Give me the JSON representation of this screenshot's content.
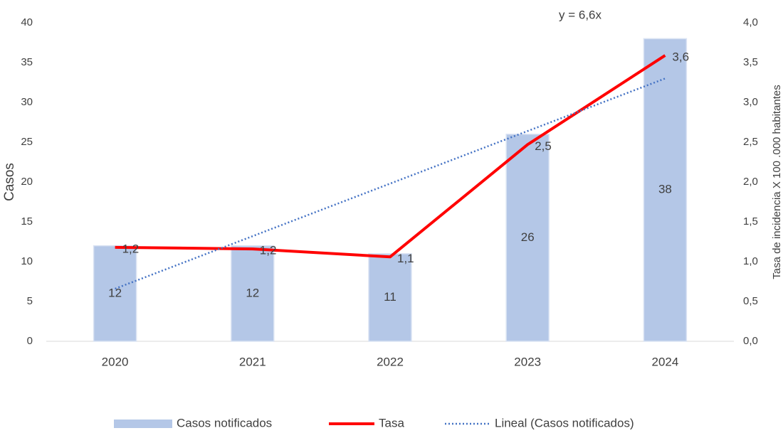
{
  "chart_data": {
    "type": "bar",
    "annotation": "y = 6,6x",
    "ylabel": "Casos",
    "y2label": "Tasa de incidencia X 100 .000 habitantes",
    "categories": [
      "2020",
      "2021",
      "2022",
      "2023",
      "2024"
    ],
    "series": [
      {
        "name": "Casos notificados",
        "type": "bar",
        "color": "#b4c7e7",
        "values": [
          12,
          12,
          11,
          26,
          38
        ]
      },
      {
        "name": "Tasa",
        "type": "line",
        "axis": "y2",
        "color": "#ff0000",
        "values": [
          1.18,
          1.16,
          1.06,
          2.47,
          3.59
        ],
        "value_labels": [
          "1,2",
          "1,2",
          "1,1",
          "2,5",
          "3,6"
        ]
      },
      {
        "name": "Lineal (Casos notificados)",
        "type": "line",
        "style": "dotted",
        "color": "#4472c4",
        "values": [
          6.6,
          13.2,
          19.8,
          26.4,
          33
        ]
      }
    ],
    "ylim": [
      0,
      40
    ],
    "yticks": [
      0,
      5,
      10,
      15,
      20,
      25,
      30,
      35,
      40
    ],
    "y2lim": [
      0,
      4
    ],
    "y2ticks": [
      {
        "value": 0,
        "label": "0,0"
      },
      {
        "value": 0.5,
        "label": "0,5"
      },
      {
        "value": 1,
        "label": "1,0"
      },
      {
        "value": 1.5,
        "label": "1,5"
      },
      {
        "value": 2,
        "label": "2,0"
      },
      {
        "value": 2.5,
        "label": "2,5"
      },
      {
        "value": 3,
        "label": "3,0"
      },
      {
        "value": 3.5,
        "label": "3,5"
      },
      {
        "value": 4,
        "label": "4,0"
      }
    ],
    "grid": false,
    "legend": "bottom"
  }
}
